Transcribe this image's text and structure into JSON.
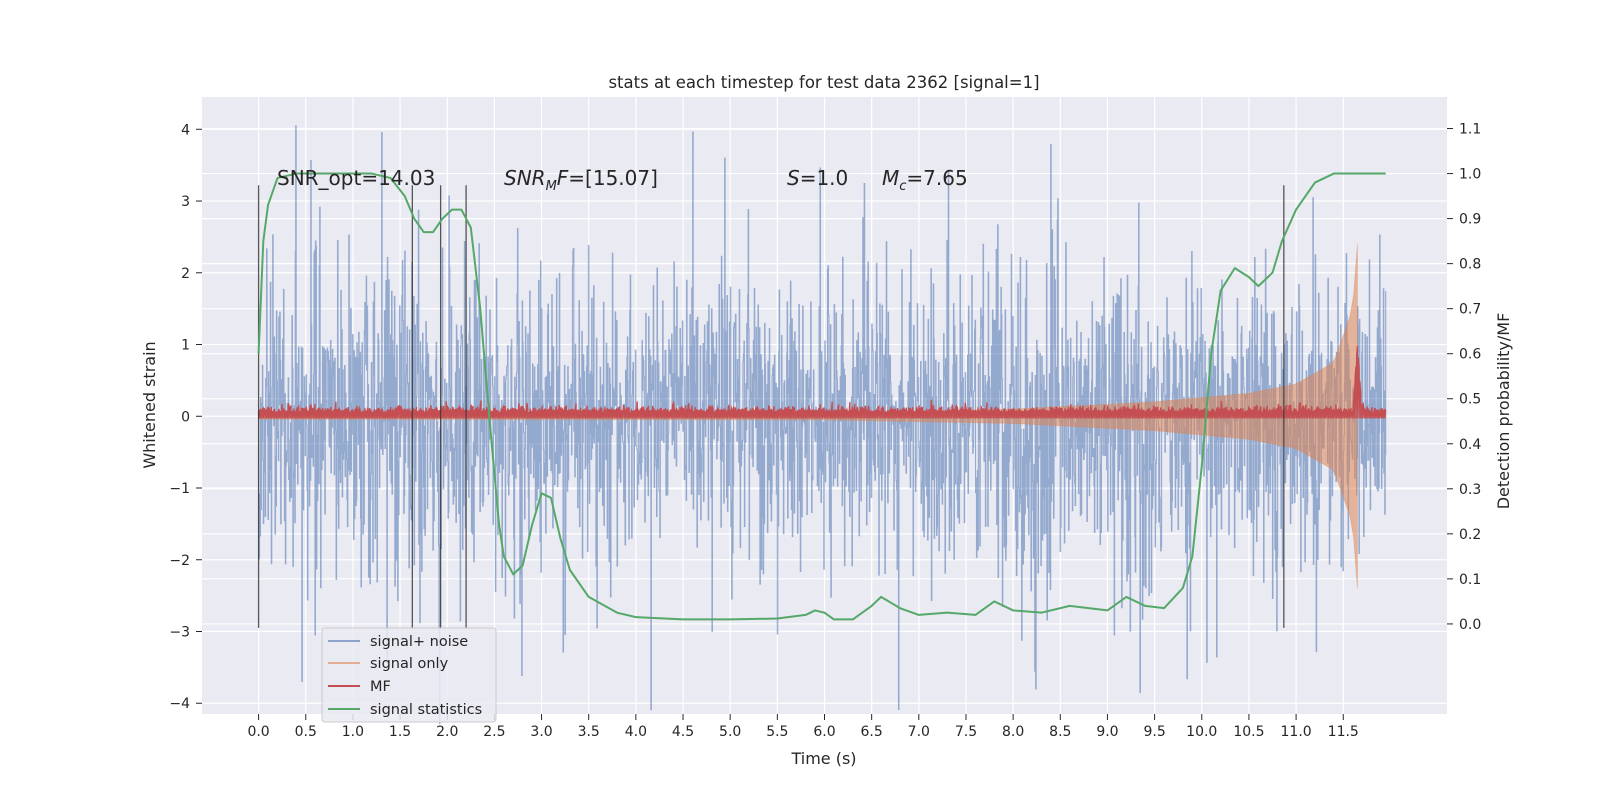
{
  "chart_data": {
    "type": "line",
    "title": "stats at each timestep for test data 2362 [signal=1]",
    "xlabel": "Time (s)",
    "ylabel_left": "Whitened strain",
    "ylabel_right": "Detection probability/MF",
    "xlim": [
      -0.6,
      12.6
    ],
    "ylim_left": [
      -4.15,
      4.45
    ],
    "ylim_right": [
      -0.2,
      1.17
    ],
    "x_ticks": [
      0.0,
      0.5,
      1.0,
      1.5,
      2.0,
      2.5,
      3.0,
      3.5,
      4.0,
      4.5,
      5.0,
      5.5,
      6.0,
      6.5,
      7.0,
      7.5,
      8.0,
      8.5,
      9.0,
      9.5,
      10.0,
      10.5,
      11.0,
      11.5
    ],
    "x_tick_labels": [
      "0.0",
      "0.5",
      "1.0",
      "1.5",
      "2.0",
      "2.5",
      "3.0",
      "3.5",
      "4.0",
      "4.5",
      "5.0",
      "5.5",
      "6.0",
      "6.5",
      "7.0",
      "7.5",
      "8.0",
      "8.5",
      "9.0",
      "9.5",
      "10.0",
      "10.5",
      "11.0",
      "11.5"
    ],
    "y_left_ticks": [
      4,
      3,
      2,
      1,
      0,
      -1,
      -2,
      -3,
      -4
    ],
    "y_left_tick_labels": [
      "4",
      "3",
      "2",
      "1",
      "0",
      "−1",
      "−2",
      "−3",
      "−4"
    ],
    "y_right_ticks": [
      1.1,
      1.0,
      0.9,
      0.8,
      0.7,
      0.6,
      0.5,
      0.4,
      0.3,
      0.2,
      0.1,
      0.0
    ],
    "y_right_tick_labels": [
      "1.1",
      "1.0",
      "0.9",
      "0.8",
      "0.7",
      "0.6",
      "0.5",
      "0.4",
      "0.3",
      "0.2",
      "0.1",
      "0.0"
    ],
    "grid": true,
    "background": "#eaeaf2",
    "legend_position": "lower-left",
    "series": [
      {
        "name": "signal+ noise",
        "color": "#4c72b0",
        "axis": "left",
        "style": "dense noise, approx. ±2.7 envelope with spikes to ±4.1",
        "envelope_abs": 2.7,
        "extreme_spike": 4.1
      },
      {
        "name": "signal only",
        "color": "#dd8452",
        "axis": "left",
        "style": "chirp with growing amplitude",
        "x": [
          0.0,
          6.0,
          8.0,
          9.5,
          10.5,
          11.0,
          11.4,
          11.6,
          11.65
        ],
        "amplitude": [
          0.04,
          0.05,
          0.1,
          0.2,
          0.32,
          0.45,
          0.75,
          1.5,
          2.4
        ]
      },
      {
        "name": "MF",
        "color": "#c44e52",
        "axis": "left",
        "style": "noisy baseline near 0.05 with peak near merger",
        "baseline": 0.05,
        "peak_x": 11.65,
        "peak_y": 1.0
      },
      {
        "name": "signal statistics",
        "color": "#55a868",
        "axis": "right",
        "x": [
          0.0,
          0.05,
          0.1,
          0.2,
          0.4,
          0.8,
          1.2,
          1.4,
          1.55,
          1.65,
          1.75,
          1.85,
          1.95,
          2.05,
          2.15,
          2.25,
          2.35,
          2.45,
          2.55,
          2.6,
          2.7,
          2.8,
          2.9,
          3.0,
          3.1,
          3.2,
          3.3,
          3.5,
          3.8,
          4.0,
          4.5,
          5.0,
          5.5,
          5.8,
          5.9,
          6.0,
          6.1,
          6.3,
          6.5,
          6.6,
          6.8,
          7.0,
          7.3,
          7.6,
          7.8,
          8.0,
          8.3,
          8.6,
          9.0,
          9.2,
          9.4,
          9.6,
          9.8,
          9.9,
          10.0,
          10.1,
          10.2,
          10.35,
          10.5,
          10.6,
          10.75,
          10.85,
          11.0,
          11.2,
          11.4,
          11.6,
          11.95
        ],
        "y": [
          0.6,
          0.85,
          0.93,
          0.99,
          1.0,
          1.0,
          1.0,
          0.99,
          0.95,
          0.9,
          0.87,
          0.87,
          0.9,
          0.92,
          0.92,
          0.88,
          0.7,
          0.45,
          0.22,
          0.15,
          0.11,
          0.13,
          0.22,
          0.29,
          0.28,
          0.19,
          0.12,
          0.06,
          0.025,
          0.015,
          0.01,
          0.01,
          0.012,
          0.02,
          0.03,
          0.025,
          0.01,
          0.01,
          0.04,
          0.06,
          0.035,
          0.02,
          0.025,
          0.02,
          0.05,
          0.03,
          0.025,
          0.04,
          0.03,
          0.06,
          0.04,
          0.035,
          0.08,
          0.15,
          0.35,
          0.6,
          0.74,
          0.79,
          0.77,
          0.75,
          0.78,
          0.85,
          0.92,
          0.98,
          1.0,
          1.0,
          1.0
        ]
      }
    ],
    "vertical_markers": [
      0.0,
      1.63,
      1.93,
      2.2,
      10.87
    ],
    "annotations": [
      {
        "text": "SNR_opt=14.03",
        "x": 0.2
      },
      {
        "text_italic": "SNR",
        "sub": "M",
        "text_italic_2": "F",
        "text_rest": "=[15.07]",
        "x": 2.6
      },
      {
        "text_italic": "S",
        "text_rest": "=1.0",
        "x": 5.6
      },
      {
        "text_italic": "M",
        "sub": "c",
        "text_rest": "=7.65",
        "x": 6.6
      }
    ]
  }
}
